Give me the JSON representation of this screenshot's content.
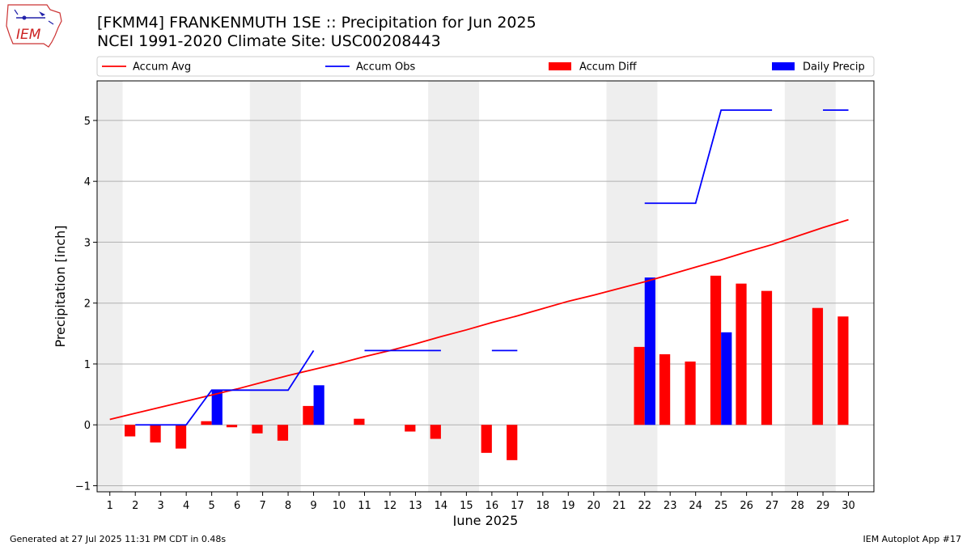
{
  "header": {
    "logo_text": "IEM",
    "title": "[FKMM4] FRANKENMUTH 1SE :: Precipitation for Jun 2025",
    "subtitle": "NCEI 1991-2020 Climate Site: USC00208443"
  },
  "footer": {
    "generated": "Generated at 27 Jul 2025 11:31 PM CDT in 0.48s",
    "app": "IEM Autoplot App #17"
  },
  "colors": {
    "accum_avg": "#ff0000",
    "accum_obs": "#0000ff",
    "accum_diff": "#ff0000",
    "daily_precip": "#0000ff",
    "weekend_shade": "#eeeeee",
    "grid": "#b0b0b0"
  },
  "chart_data": {
    "type": "bar",
    "xlabel": "June 2025",
    "ylabel": "Precipitation [inch]",
    "ylim": [
      -1.1,
      5.65
    ],
    "xlim": [
      0.5,
      31.0
    ],
    "yticks": [
      -1,
      0,
      1,
      2,
      3,
      4,
      5
    ],
    "days": [
      1,
      2,
      3,
      4,
      5,
      6,
      7,
      8,
      9,
      10,
      11,
      12,
      13,
      14,
      15,
      16,
      17,
      18,
      19,
      20,
      21,
      22,
      23,
      24,
      25,
      26,
      27,
      28,
      29,
      30
    ],
    "grid": "horizontal",
    "legend_position": "top",
    "legend": [
      {
        "label": "Accum Avg",
        "kind": "line",
        "color": "#ff0000"
      },
      {
        "label": "Accum Obs",
        "kind": "line",
        "color": "#0000ff"
      },
      {
        "label": "Accum Diff",
        "kind": "bar",
        "color": "#ff0000"
      },
      {
        "label": "Daily Precip",
        "kind": "bar",
        "color": "#0000ff"
      }
    ],
    "weekends": [
      [
        1,
        1
      ],
      [
        7,
        8
      ],
      [
        14,
        15
      ],
      [
        21,
        22
      ],
      [
        28,
        29
      ]
    ],
    "series": [
      {
        "name": "Accum Avg",
        "type": "line",
        "x": [
          1,
          2,
          3,
          4,
          5,
          6,
          7,
          8,
          9,
          10,
          11,
          12,
          13,
          14,
          15,
          16,
          17,
          18,
          19,
          20,
          21,
          22,
          23,
          24,
          25,
          26,
          27,
          28,
          29,
          30
        ],
        "values": [
          0.09,
          0.19,
          0.29,
          0.39,
          0.49,
          0.59,
          0.7,
          0.81,
          0.91,
          1.01,
          1.12,
          1.22,
          1.33,
          1.45,
          1.56,
          1.68,
          1.79,
          1.91,
          2.03,
          2.13,
          2.24,
          2.35,
          2.47,
          2.59,
          2.71,
          2.84,
          2.96,
          3.1,
          3.24,
          3.37
        ]
      },
      {
        "name": "Accum Obs",
        "type": "line",
        "x": [
          1,
          2,
          3,
          4,
          5,
          6,
          7,
          8,
          9,
          10,
          11,
          12,
          13,
          14,
          15,
          16,
          17,
          18,
          19,
          20,
          21,
          22,
          23,
          24,
          25,
          26,
          27,
          28,
          29,
          30
        ],
        "values": [
          null,
          0.0,
          0.0,
          0.0,
          0.57,
          0.57,
          0.57,
          0.57,
          1.22,
          null,
          1.22,
          1.22,
          1.22,
          1.22,
          null,
          1.22,
          1.22,
          null,
          null,
          null,
          null,
          3.64,
          3.64,
          3.64,
          5.17,
          5.17,
          5.17,
          null,
          5.17,
          5.17
        ]
      },
      {
        "name": "Accum Diff",
        "type": "bar",
        "x": [
          2,
          3,
          4,
          5,
          6,
          7,
          8,
          9,
          11,
          13,
          14,
          16,
          17,
          22,
          23,
          24,
          25,
          26,
          27,
          29,
          30
        ],
        "values": [
          -0.19,
          -0.29,
          -0.39,
          0.06,
          -0.04,
          -0.14,
          -0.26,
          0.31,
          0.1,
          -0.11,
          -0.23,
          -0.46,
          -0.58,
          1.28,
          1.16,
          1.04,
          2.45,
          2.32,
          2.2,
          1.92,
          1.78
        ]
      },
      {
        "name": "Daily Precip",
        "type": "bar",
        "x": [
          5,
          9,
          22,
          25
        ],
        "values": [
          0.57,
          0.65,
          2.42,
          1.52
        ]
      }
    ]
  }
}
